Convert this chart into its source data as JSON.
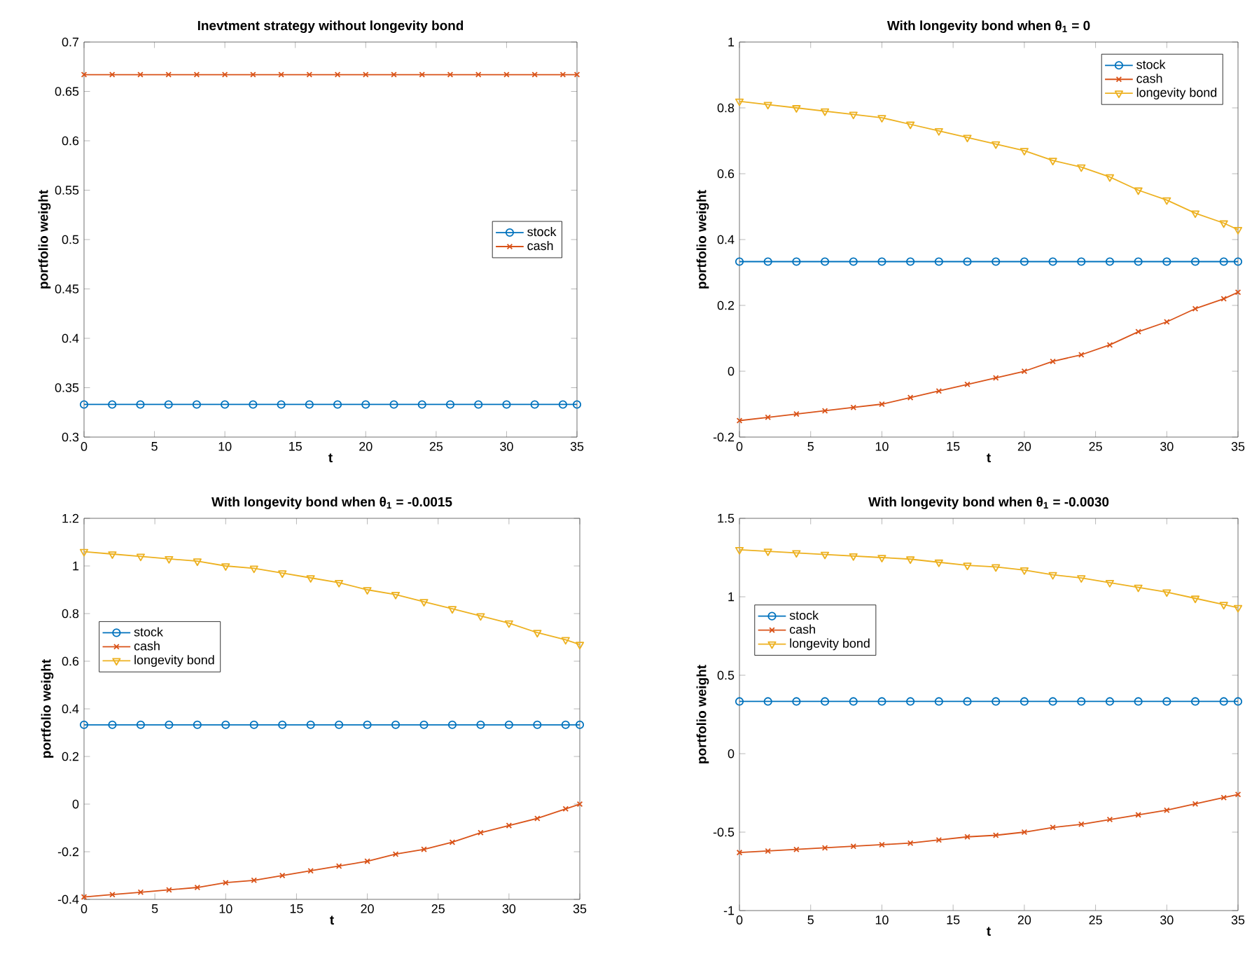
{
  "chart_data": [
    {
      "type": "line",
      "title": "Inevtment strategy without longevity bond",
      "xlabel": "t",
      "ylabel": "portfolio weight",
      "x": [
        0,
        2,
        4,
        6,
        8,
        10,
        12,
        14,
        16,
        18,
        20,
        22,
        24,
        26,
        28,
        30,
        32,
        34,
        35
      ],
      "xlim": [
        0,
        35
      ],
      "xticks": [
        0,
        5,
        10,
        15,
        20,
        25,
        30,
        35
      ],
      "ylim": [
        0.3,
        0.7
      ],
      "yticks": [
        0.3,
        0.35,
        0.4,
        0.45,
        0.5,
        0.55,
        0.6,
        0.65,
        0.7
      ],
      "grid": false,
      "legend": "right",
      "series": [
        {
          "name": "stock",
          "color": "#0072bd",
          "marker": "circle",
          "values": [
            0.333,
            0.333,
            0.333,
            0.333,
            0.333,
            0.333,
            0.333,
            0.333,
            0.333,
            0.333,
            0.333,
            0.333,
            0.333,
            0.333,
            0.333,
            0.333,
            0.333,
            0.333,
            0.333
          ]
        },
        {
          "name": "cash",
          "color": "#d95319",
          "marker": "cross",
          "values": [
            0.667,
            0.667,
            0.667,
            0.667,
            0.667,
            0.667,
            0.667,
            0.667,
            0.667,
            0.667,
            0.667,
            0.667,
            0.667,
            0.667,
            0.667,
            0.667,
            0.667,
            0.667,
            0.667
          ]
        }
      ]
    },
    {
      "type": "line",
      "title": "With longevity bond when θ$_{1}$ = 0",
      "xlabel": "t",
      "ylabel": "portfolio weight",
      "x": [
        0,
        2,
        4,
        6,
        8,
        10,
        12,
        14,
        16,
        18,
        20,
        22,
        24,
        26,
        28,
        30,
        32,
        34,
        35
      ],
      "xlim": [
        0,
        35
      ],
      "xticks": [
        0,
        5,
        10,
        15,
        20,
        25,
        30,
        35
      ],
      "ylim": [
        -0.2,
        1
      ],
      "yticks": [
        -0.2,
        0,
        0.2,
        0.4,
        0.6,
        0.8,
        1
      ],
      "grid": false,
      "legend": "top right",
      "series": [
        {
          "name": "stock",
          "color": "#0072bd",
          "marker": "circle",
          "values": [
            0.333,
            0.333,
            0.333,
            0.333,
            0.333,
            0.333,
            0.333,
            0.333,
            0.333,
            0.333,
            0.333,
            0.333,
            0.333,
            0.333,
            0.333,
            0.333,
            0.333,
            0.333,
            0.333
          ]
        },
        {
          "name": "cash",
          "color": "#d95319",
          "marker": "cross",
          "values": [
            -0.15,
            -0.14,
            -0.13,
            -0.12,
            -0.11,
            -0.1,
            -0.08,
            -0.06,
            -0.04,
            -0.02,
            0,
            0.03,
            0.05,
            0.08,
            0.12,
            0.15,
            0.19,
            0.22,
            0.24
          ]
        },
        {
          "name": "longevity bond",
          "color": "#edb120",
          "marker": "triangle",
          "values": [
            0.82,
            0.81,
            0.8,
            0.79,
            0.78,
            0.77,
            0.75,
            0.73,
            0.71,
            0.69,
            0.67,
            0.64,
            0.62,
            0.59,
            0.55,
            0.52,
            0.48,
            0.45,
            0.43
          ]
        }
      ]
    },
    {
      "type": "line",
      "title": "With longevity bond when θ$_{1}$ = -0.0015",
      "xlabel": "t",
      "ylabel": "portfolio weight",
      "x": [
        0,
        2,
        4,
        6,
        8,
        10,
        12,
        14,
        16,
        18,
        20,
        22,
        24,
        26,
        28,
        30,
        32,
        34,
        35
      ],
      "xlim": [
        0,
        35
      ],
      "xticks": [
        0,
        5,
        10,
        15,
        20,
        25,
        30,
        35
      ],
      "ylim": [
        -0.4,
        1.2
      ],
      "yticks": [
        -0.4,
        -0.2,
        0,
        0.2,
        0.4,
        0.6,
        0.8,
        1,
        1.2
      ],
      "grid": false,
      "legend": "left",
      "series": [
        {
          "name": "stock",
          "color": "#0072bd",
          "marker": "circle",
          "values": [
            0.333,
            0.333,
            0.333,
            0.333,
            0.333,
            0.333,
            0.333,
            0.333,
            0.333,
            0.333,
            0.333,
            0.333,
            0.333,
            0.333,
            0.333,
            0.333,
            0.333,
            0.333,
            0.333
          ]
        },
        {
          "name": "cash",
          "color": "#d95319",
          "marker": "cross",
          "values": [
            -0.39,
            -0.38,
            -0.37,
            -0.36,
            -0.35,
            -0.33,
            -0.32,
            -0.3,
            -0.28,
            -0.26,
            -0.24,
            -0.21,
            -0.19,
            -0.16,
            -0.12,
            -0.09,
            -0.06,
            -0.02,
            0
          ]
        },
        {
          "name": "longevity bond",
          "color": "#edb120",
          "marker": "triangle",
          "values": [
            1.06,
            1.05,
            1.04,
            1.03,
            1.02,
            1,
            0.99,
            0.97,
            0.95,
            0.93,
            0.9,
            0.88,
            0.85,
            0.82,
            0.79,
            0.76,
            0.72,
            0.69,
            0.67
          ]
        }
      ]
    },
    {
      "type": "line",
      "title": "With longevity bond when θ$_{1}$ = -0.0030",
      "xlabel": "t",
      "ylabel": "portfolio weight",
      "x": [
        0,
        2,
        4,
        6,
        8,
        10,
        12,
        14,
        16,
        18,
        20,
        22,
        24,
        26,
        28,
        30,
        32,
        34,
        35
      ],
      "xlim": [
        0,
        35
      ],
      "xticks": [
        0,
        5,
        10,
        15,
        20,
        25,
        30,
        35
      ],
      "ylim": [
        -1,
        1.5
      ],
      "yticks": [
        -1,
        -0.5,
        0,
        0.5,
        1,
        1.5
      ],
      "grid": false,
      "legend": "left",
      "series": [
        {
          "name": "stock",
          "color": "#0072bd",
          "marker": "circle",
          "values": [
            0.333,
            0.333,
            0.333,
            0.333,
            0.333,
            0.333,
            0.333,
            0.333,
            0.333,
            0.333,
            0.333,
            0.333,
            0.333,
            0.333,
            0.333,
            0.333,
            0.333,
            0.333,
            0.333
          ]
        },
        {
          "name": "cash",
          "color": "#d95319",
          "marker": "cross",
          "values": [
            -0.63,
            -0.62,
            -0.61,
            -0.6,
            -0.59,
            -0.58,
            -0.57,
            -0.55,
            -0.53,
            -0.52,
            -0.5,
            -0.47,
            -0.45,
            -0.42,
            -0.39,
            -0.36,
            -0.32,
            -0.28,
            -0.26
          ]
        },
        {
          "name": "longevity bond",
          "color": "#edb120",
          "marker": "triangle",
          "values": [
            1.3,
            1.29,
            1.28,
            1.27,
            1.26,
            1.25,
            1.24,
            1.22,
            1.2,
            1.19,
            1.17,
            1.14,
            1.12,
            1.09,
            1.06,
            1.03,
            0.99,
            0.95,
            0.93
          ]
        }
      ]
    }
  ]
}
